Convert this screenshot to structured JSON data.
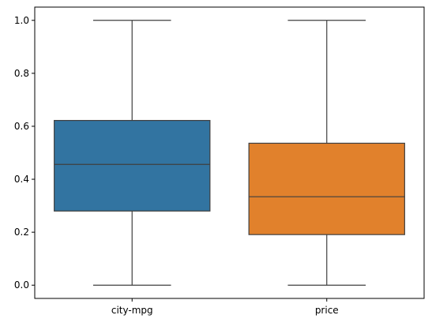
{
  "chart_data": {
    "type": "box",
    "title": "",
    "xlabel": "",
    "ylabel": "",
    "ylim": [
      -0.05,
      1.05
    ],
    "yticks": [
      0.0,
      0.2,
      0.4,
      0.6,
      0.8,
      1.0
    ],
    "ytick_labels": [
      "0.0",
      "0.2",
      "0.4",
      "0.6",
      "0.8",
      "1.0"
    ],
    "grid": false,
    "legend": "none",
    "categories": [
      "city-mpg",
      "price"
    ],
    "boxes": [
      {
        "category": "city-mpg",
        "whisker_low": 0.0,
        "q1": 0.28,
        "median": 0.456,
        "q3": 0.622,
        "whisker_high": 1.0,
        "color": "#3274a1"
      },
      {
        "category": "price",
        "whisker_low": 0.0,
        "q1": 0.191,
        "median": 0.334,
        "q3": 0.536,
        "whisker_high": 1.0,
        "color": "#e1812c"
      }
    ]
  }
}
